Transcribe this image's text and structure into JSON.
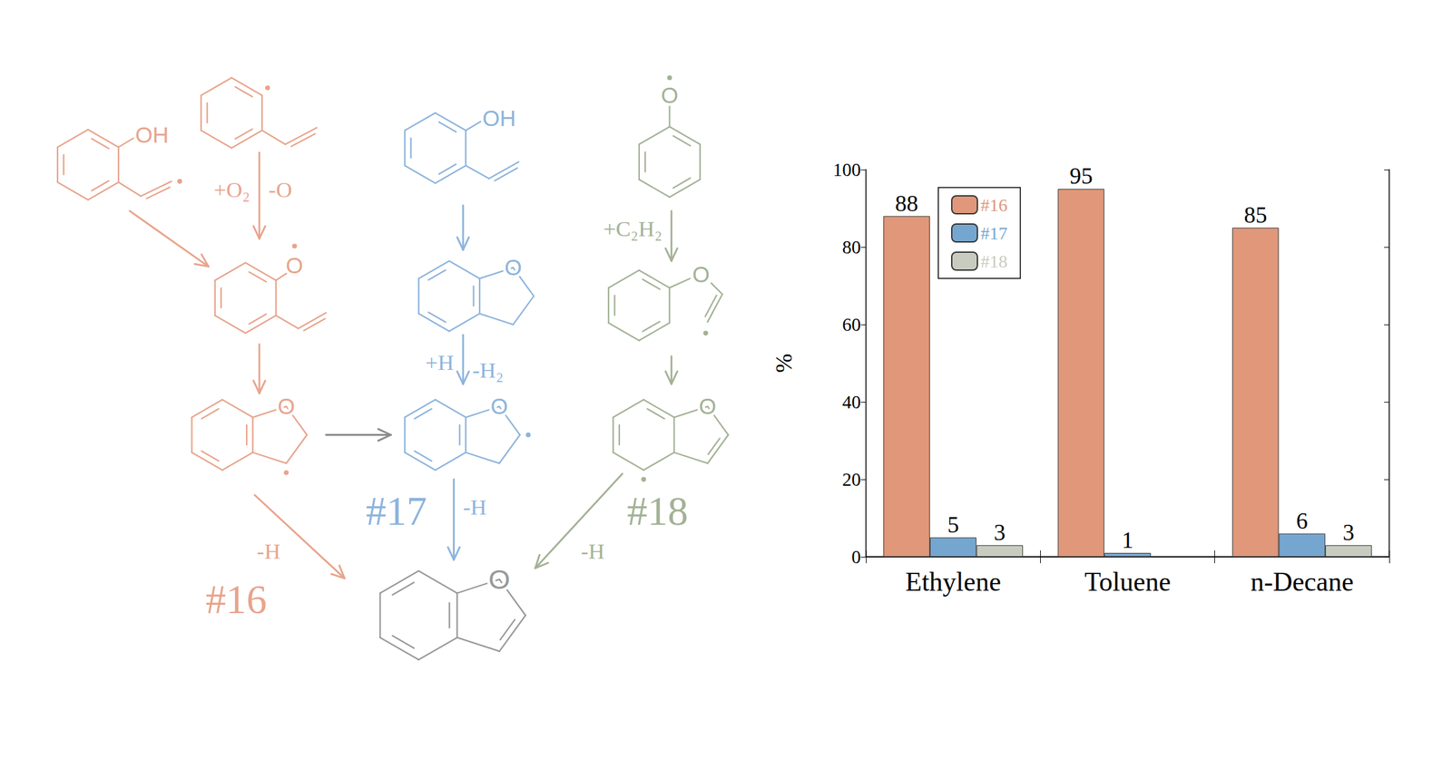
{
  "chart_data": {
    "type": "bar",
    "categories": [
      "Ethylene",
      "Toluene",
      "n-Decane"
    ],
    "series": [
      {
        "name": "#16",
        "color": "#e0977a",
        "values": [
          88,
          95,
          85
        ]
      },
      {
        "name": "#17",
        "color": "#75a6d0",
        "values": [
          5,
          1,
          6
        ]
      },
      {
        "name": "#18",
        "color": "#c8ccc0",
        "values": [
          3,
          null,
          3
        ]
      }
    ],
    "ylabel": "%",
    "ylim": [
      0,
      100
    ],
    "yticks": [
      0,
      20,
      40,
      60,
      80,
      100
    ],
    "data_labels": true,
    "legend": "upper left",
    "grid": false
  },
  "diagram": {
    "molecules": [
      {
        "atom_label": "OH",
        "color": "#e8a48c"
      },
      {
        "color": "#e8a48c"
      },
      {
        "atom_label": "O",
        "color": "#e8a48c"
      },
      {
        "atom_label": "O",
        "color": "#e8a48c"
      },
      {
        "atom_label": "OH",
        "color": "#8db4dc"
      },
      {
        "atom_label": "O",
        "color": "#8db4dc"
      },
      {
        "atom_label": "O",
        "color": "#8db4dc"
      },
      {
        "atom_label": "O",
        "color": "#a3b296"
      },
      {
        "atom_label": "O",
        "color": "#a3b296"
      },
      {
        "atom_label": "O",
        "color": "#a3b296"
      },
      {
        "atom_label": "O",
        "color": "#999999"
      }
    ],
    "arrows": [
      {
        "color": "#e8a48c",
        "labels": []
      },
      {
        "color": "#e8a48c",
        "labels": [
          "+O₂",
          "-O"
        ]
      },
      {
        "color": "#e8a48c",
        "labels": []
      },
      {
        "color": "#e8a48c",
        "labels": [
          "-H"
        ]
      },
      {
        "color": "#8c8c8c",
        "labels": []
      },
      {
        "color": "#8db4dc",
        "labels": []
      },
      {
        "color": "#8db4dc",
        "labels": [
          "+H",
          "-H₂"
        ]
      },
      {
        "color": "#8db4dc",
        "labels": [
          "-H"
        ]
      },
      {
        "color": "#a3b296",
        "labels": [
          "+C₂H₂"
        ]
      },
      {
        "color": "#a3b296",
        "labels": []
      },
      {
        "color": "#a3b296",
        "labels": [
          "-H"
        ]
      }
    ],
    "pathway_labels": [
      {
        "text": "#16",
        "color": "#e8a48c"
      },
      {
        "text": "#17",
        "color": "#8db4dc"
      },
      {
        "text": "#18",
        "color": "#a3b296"
      }
    ]
  }
}
